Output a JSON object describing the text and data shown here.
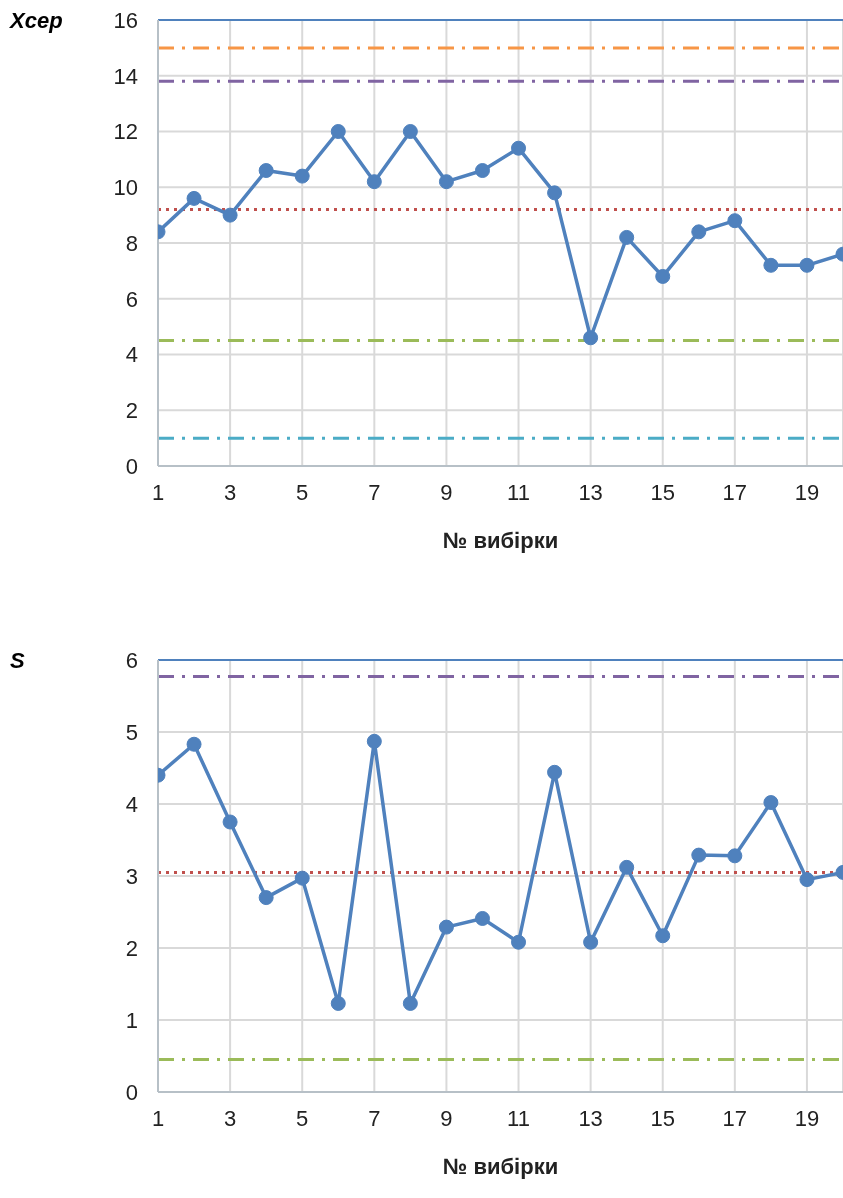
{
  "chart_data": [
    {
      "type": "line",
      "xlabel": "№ вибірки",
      "ylabel": "Xсер",
      "x": [
        1,
        2,
        3,
        4,
        5,
        6,
        7,
        8,
        9,
        10,
        11,
        12,
        13,
        14,
        15,
        16,
        17,
        18,
        19,
        20
      ],
      "xlim": [
        1,
        20
      ],
      "xticks": [
        1,
        3,
        5,
        7,
        9,
        11,
        13,
        15,
        17,
        19
      ],
      "ylim": [
        0,
        16
      ],
      "yticks": [
        0,
        2,
        4,
        6,
        8,
        10,
        12,
        14,
        16
      ],
      "grid": true,
      "marker": "circle",
      "line_style": "solid",
      "series": [
        {
          "color": "#4f81bd",
          "values": [
            8.4,
            9.6,
            9.0,
            10.6,
            10.4,
            12.0,
            10.2,
            12.0,
            10.2,
            10.6,
            11.4,
            9.8,
            4.6,
            8.2,
            6.8,
            8.4,
            8.8,
            7.2,
            7.2,
            7.6
          ]
        }
      ],
      "ref_lines": [
        {
          "axis": "y",
          "value": 16,
          "color": "#4f81bd",
          "line_style": "solid"
        },
        {
          "axis": "y",
          "value": 15,
          "color": "#f79646",
          "line_style": "dashed"
        },
        {
          "axis": "y",
          "value": 13.8,
          "color": "#8064a2",
          "line_style": "dashed"
        },
        {
          "axis": "y",
          "value": 9.2,
          "color": "#c0504d",
          "line_style": "dotted"
        },
        {
          "axis": "y",
          "value": 4.5,
          "color": "#9bbb59",
          "line_style": "dashed"
        },
        {
          "axis": "y",
          "value": 1.0,
          "color": "#4bacc6",
          "line_style": "dashed"
        }
      ]
    },
    {
      "type": "line",
      "xlabel": "№ вибірки",
      "ylabel": "S",
      "x": [
        1,
        2,
        3,
        4,
        5,
        6,
        7,
        8,
        9,
        10,
        11,
        12,
        13,
        14,
        15,
        16,
        17,
        18,
        19,
        20
      ],
      "xlim": [
        1,
        20
      ],
      "xticks": [
        1,
        3,
        5,
        7,
        9,
        11,
        13,
        15,
        17,
        19
      ],
      "ylim": [
        0,
        6
      ],
      "yticks": [
        0,
        1,
        2,
        3,
        4,
        5,
        6
      ],
      "grid": true,
      "marker": "circle",
      "line_style": "solid",
      "series": [
        {
          "color": "#4f81bd",
          "values": [
            4.4,
            4.83,
            3.75,
            2.7,
            2.97,
            1.23,
            4.87,
            1.23,
            2.29,
            2.41,
            2.08,
            4.44,
            2.08,
            3.12,
            2.17,
            3.29,
            3.28,
            4.02,
            2.95,
            3.05
          ]
        }
      ],
      "ref_lines": [
        {
          "axis": "y",
          "value": 6,
          "color": "#4f81bd",
          "line_style": "solid"
        },
        {
          "axis": "y",
          "value": 5.77,
          "color": "#8064a2",
          "line_style": "dashed"
        },
        {
          "axis": "y",
          "value": 3.05,
          "color": "#c0504d",
          "line_style": "dotted"
        },
        {
          "axis": "y",
          "value": 0.45,
          "color": "#9bbb59",
          "line_style": "dashed"
        }
      ]
    }
  ]
}
